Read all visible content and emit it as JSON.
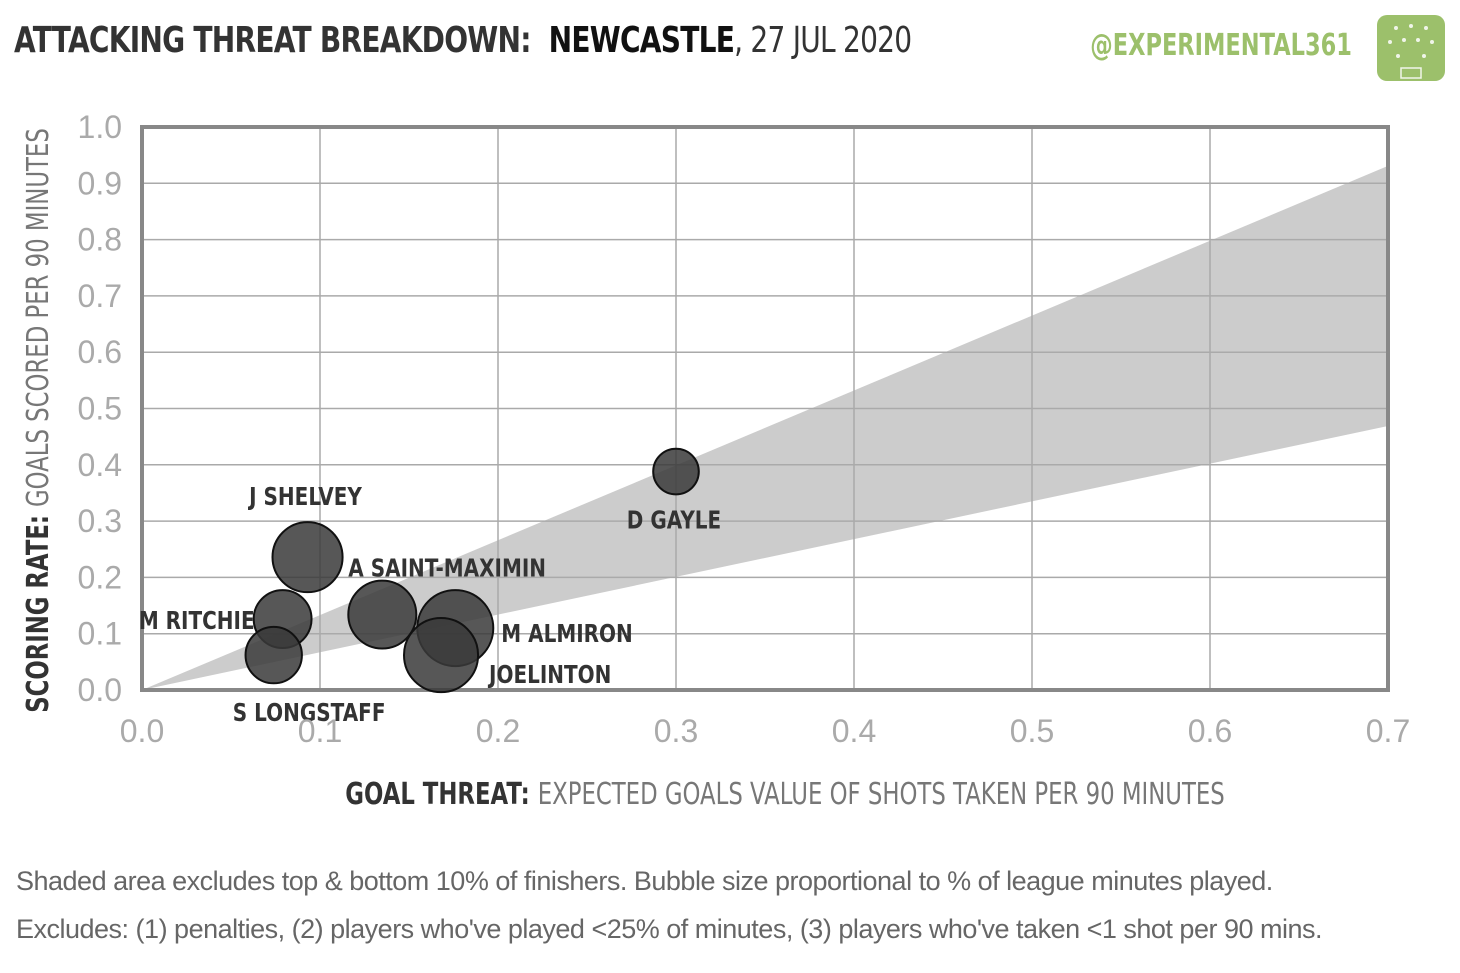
{
  "header": {
    "title_prefix": "ATTACKING THREAT BREAKDOWN:",
    "team": "NEWCASTLE",
    "date": ", 27 JUL 2020",
    "handle": "@EXPERIMENTAL361"
  },
  "chart_data": {
    "type": "scatter",
    "xlabel_bold": "GOAL THREAT:",
    "xlabel_rest": "EXPECTED GOALS VALUE OF SHOTS TAKEN PER 90 MINUTES",
    "ylabel_bold": "SCORING RATE:",
    "ylabel_rest": "GOALS SCORED PER 90 MINUTES",
    "xlim": [
      0,
      0.7
    ],
    "ylim": [
      0,
      1.0
    ],
    "x_ticks": [
      "0.0",
      "0.1",
      "0.2",
      "0.3",
      "0.4",
      "0.5",
      "0.6",
      "0.7"
    ],
    "y_ticks": [
      "0.0",
      "0.1",
      "0.2",
      "0.3",
      "0.4",
      "0.5",
      "0.6",
      "0.7",
      "0.8",
      "0.9",
      "1.0"
    ],
    "grid": true,
    "band": {
      "upper_slope": 1.33,
      "lower_slope": 0.67
    },
    "colors": {
      "bubble": "#3a3a3a",
      "band": "#cccccc",
      "grid": "#aaaaaa",
      "axis": "#888888",
      "accent": "#9cc06b"
    },
    "points": [
      {
        "name": "J SHELVEY",
        "x": 0.093,
        "y": 0.236,
        "size": 0.85
      },
      {
        "name": "A SAINT-MAXIMIN",
        "x": 0.135,
        "y": 0.134,
        "size": 0.8
      },
      {
        "name": "M RITCHIE",
        "x": 0.079,
        "y": 0.126,
        "size": 0.58
      },
      {
        "name": "S LONGSTAFF",
        "x": 0.074,
        "y": 0.062,
        "size": 0.55
      },
      {
        "name": "M ALMIRON",
        "x": 0.176,
        "y": 0.11,
        "size": 1.0
      },
      {
        "name": "JOELINTON",
        "x": 0.168,
        "y": 0.062,
        "size": 0.95
      },
      {
        "name": "D GAYLE",
        "x": 0.3,
        "y": 0.388,
        "size": 0.36
      }
    ]
  },
  "footnotes": {
    "line1": "Shaded area excludes top & bottom 10% of finishers. Bubble size proportional to % of league minutes played.",
    "line2": "Excludes: (1) penalties, (2) players who've played <25% of minutes, (3) players who've taken <1 shot per 90 mins."
  }
}
